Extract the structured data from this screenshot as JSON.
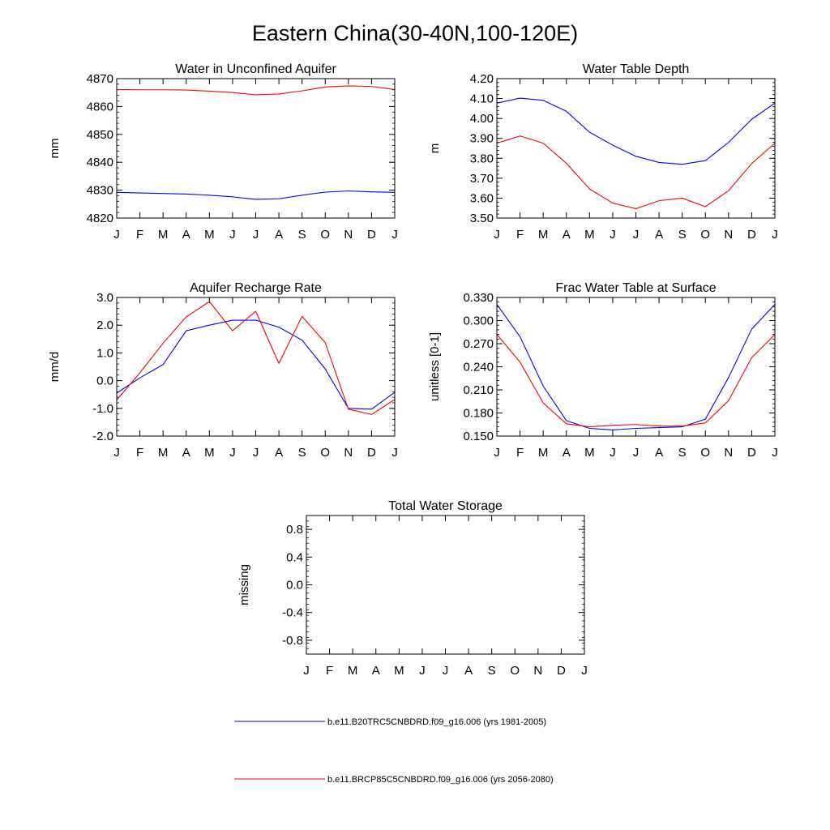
{
  "figure": {
    "title": "Eastern China(30-40N,100-120E)"
  },
  "legend": [
    {
      "label": "b.e11.B20TRC5CNBDRD.f09_g16.006 (yrs 1981-2005)",
      "color": "#0000ff"
    },
    {
      "label": "b.e11.BRCP85C5CNBDRD.f09_g16.006 (yrs 2056-2080)",
      "color": "#ff0000"
    }
  ],
  "chart_data": [
    {
      "type": "line",
      "title": "Water in Unconfined Aquifer",
      "xlabel": "",
      "ylabel": "mm",
      "categories": [
        "J",
        "F",
        "M",
        "A",
        "M",
        "J",
        "J",
        "A",
        "S",
        "O",
        "N",
        "D",
        "J"
      ],
      "ylim": [
        4820,
        4870
      ],
      "yticks": [
        4820,
        4830,
        4840,
        4850,
        4860,
        4870
      ],
      "ytick_labels": [
        "4820",
        "4830",
        "4840",
        "4850",
        "4860",
        "4870"
      ],
      "series": [
        {
          "name": "b.e11.B20TRC5CNBDRD.f09_g16.006 (yrs 1981-2005)",
          "color": "#0000ff",
          "values": [
            4829.2,
            4829.0,
            4828.8,
            4828.6,
            4828.2,
            4827.6,
            4826.7,
            4826.9,
            4828.2,
            4829.3,
            4829.7,
            4829.4,
            4829.2
          ]
        },
        {
          "name": "b.e11.BRCP85C5CNBDRD.f09_g16.006 (yrs 2056-2080)",
          "color": "#ff0000",
          "values": [
            4866.1,
            4866.0,
            4866.0,
            4865.9,
            4865.5,
            4865.0,
            4864.2,
            4864.5,
            4865.6,
            4867.0,
            4867.4,
            4867.2,
            4866.1
          ]
        }
      ]
    },
    {
      "type": "line",
      "title": "Water Table Depth",
      "xlabel": "",
      "ylabel": "m",
      "categories": [
        "J",
        "F",
        "M",
        "A",
        "M",
        "J",
        "J",
        "A",
        "S",
        "O",
        "N",
        "D",
        "J"
      ],
      "ylim": [
        3.5,
        4.2
      ],
      "yticks": [
        3.5,
        3.6,
        3.7,
        3.8,
        3.9,
        4.0,
        4.1,
        4.2
      ],
      "ytick_labels": [
        "3.50",
        "3.60",
        "3.70",
        "3.80",
        "3.90",
        "4.00",
        "4.10",
        "4.20"
      ],
      "series": [
        {
          "name": "b.e11.B20TRC5CNBDRD.f09_g16.006 (yrs 1981-2005)",
          "color": "#0000ff",
          "values": [
            4.077,
            4.102,
            4.091,
            4.036,
            3.931,
            3.866,
            3.81,
            3.779,
            3.77,
            3.788,
            3.88,
            3.996,
            4.077
          ]
        },
        {
          "name": "b.e11.BRCP85C5CNBDRD.f09_g16.006 (yrs 2056-2080)",
          "color": "#ff0000",
          "values": [
            3.876,
            3.912,
            3.876,
            3.775,
            3.646,
            3.575,
            3.547,
            3.587,
            3.6,
            3.557,
            3.637,
            3.774,
            3.876
          ]
        }
      ]
    },
    {
      "type": "line",
      "title": "Aquifer Recharge Rate",
      "xlabel": "",
      "ylabel": "mm/d",
      "categories": [
        "J",
        "F",
        "M",
        "A",
        "M",
        "J",
        "J",
        "A",
        "S",
        "O",
        "N",
        "D",
        "J"
      ],
      "ylim": [
        -2.0,
        3.0
      ],
      "yticks": [
        -2.0,
        -1.0,
        0.0,
        1.0,
        2.0,
        3.0
      ],
      "ytick_labels": [
        "-2.0",
        "-1.0",
        "0.0",
        "1.0",
        "2.0",
        "3.0"
      ],
      "series": [
        {
          "name": "b.e11.B20TRC5CNBDRD.f09_g16.006 (yrs 1981-2005)",
          "color": "#0000ff",
          "values": [
            -0.45,
            0.1,
            0.58,
            1.8,
            2.0,
            2.18,
            2.18,
            1.93,
            1.46,
            0.42,
            -1.0,
            -1.03,
            -0.42
          ]
        },
        {
          "name": "b.e11.BRCP85C5CNBDRD.f09_g16.006 (yrs 2056-2080)",
          "color": "#ff0000",
          "values": [
            -0.7,
            0.28,
            1.35,
            2.3,
            2.85,
            1.8,
            2.5,
            0.62,
            2.32,
            1.37,
            -1.03,
            -1.22,
            -0.68
          ]
        }
      ]
    },
    {
      "type": "line",
      "title": "Frac Water Table at Surface",
      "xlabel": "",
      "ylabel": "unitless [0-1]",
      "categories": [
        "J",
        "F",
        "M",
        "A",
        "M",
        "J",
        "J",
        "A",
        "S",
        "O",
        "N",
        "D",
        "J"
      ],
      "ylim": [
        0.15,
        0.33
      ],
      "yticks": [
        0.15,
        0.18,
        0.21,
        0.24,
        0.27,
        0.3,
        0.33
      ],
      "ytick_labels": [
        "0.150",
        "0.180",
        "0.210",
        "0.240",
        "0.270",
        "0.300",
        "0.330"
      ],
      "series": [
        {
          "name": "b.e11.B20TRC5CNBDRD.f09_g16.006 (yrs 1981-2005)",
          "color": "#0000ff",
          "values": [
            0.321,
            0.279,
            0.215,
            0.17,
            0.16,
            0.158,
            0.16,
            0.161,
            0.162,
            0.172,
            0.226,
            0.289,
            0.321
          ]
        },
        {
          "name": "b.e11.BRCP85C5CNBDRD.f09_g16.006 (yrs 2056-2080)",
          "color": "#ff0000",
          "values": [
            0.282,
            0.246,
            0.193,
            0.166,
            0.162,
            0.164,
            0.165,
            0.163,
            0.163,
            0.167,
            0.196,
            0.252,
            0.282
          ]
        }
      ]
    },
    {
      "type": "line",
      "title": "Total Water Storage",
      "xlabel": "",
      "ylabel": "missing",
      "categories": [
        "J",
        "F",
        "M",
        "A",
        "M",
        "J",
        "J",
        "A",
        "S",
        "O",
        "N",
        "D",
        "J"
      ],
      "ylim": [
        -1.0,
        1.0
      ],
      "yticks": [
        -0.8,
        -0.4,
        0.0,
        0.4,
        0.8
      ],
      "ytick_labels": [
        "-0.8",
        "-0.4",
        "0.0",
        "0.4",
        "0.8"
      ],
      "series": []
    }
  ]
}
